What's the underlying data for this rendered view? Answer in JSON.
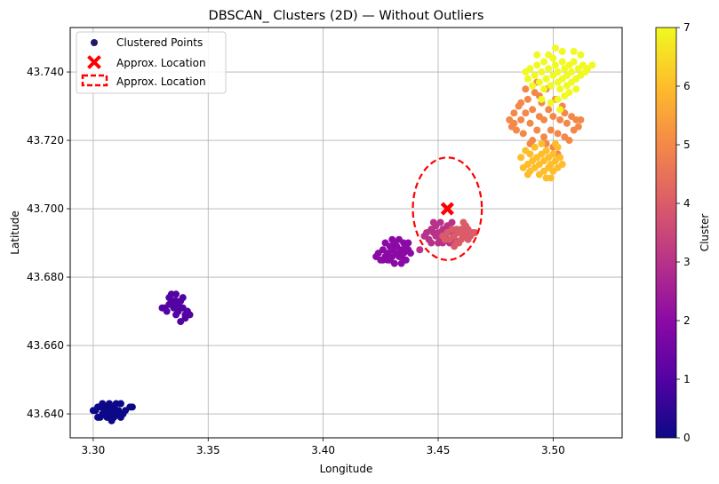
{
  "chart_data": {
    "type": "scatter",
    "title": "DBSCAN_ Clusters (2D) — Without Outliers",
    "xlabel": "Longitude",
    "ylabel": "Latitude",
    "xlim": [
      3.29,
      3.53
    ],
    "ylim": [
      43.633,
      43.753
    ],
    "x_ticks": [
      3.3,
      3.35,
      3.4,
      3.45,
      3.5
    ],
    "x_tick_labels": [
      "3.30",
      "3.35",
      "3.40",
      "3.45",
      "3.50"
    ],
    "y_ticks": [
      43.64,
      43.66,
      43.68,
      43.7,
      43.72,
      43.74
    ],
    "y_tick_labels": [
      "43.640",
      "43.660",
      "43.680",
      "43.700",
      "43.720",
      "43.740"
    ],
    "grid": true,
    "legend_position": "top-left",
    "legend": [
      {
        "label": "Clustered Points",
        "marker": "dot",
        "color": "#1a1a66"
      },
      {
        "label": "Approx. Location",
        "marker": "x",
        "color": "#ff0000"
      },
      {
        "label": "Approx. Location",
        "marker": "dashed-box",
        "color": "#ff0000"
      }
    ],
    "colorbar": {
      "label": "Cluster",
      "min": 0,
      "max": 7,
      "ticks": [
        "0",
        "1",
        "2",
        "3",
        "4",
        "5",
        "6",
        "7"
      ],
      "colormap": "plasma"
    },
    "clusters": [
      {
        "cluster": 0,
        "color": "#0d0887",
        "points": [
          [
            3.301,
            43.641
          ],
          [
            3.302,
            43.639
          ],
          [
            3.303,
            43.642
          ],
          [
            3.304,
            43.64
          ],
          [
            3.305,
            43.641
          ],
          [
            3.306,
            43.639
          ],
          [
            3.306,
            43.642
          ],
          [
            3.307,
            43.64
          ],
          [
            3.308,
            43.641
          ],
          [
            3.309,
            43.642
          ],
          [
            3.309,
            43.639
          ],
          [
            3.31,
            43.64
          ],
          [
            3.311,
            43.641
          ],
          [
            3.312,
            43.643
          ],
          [
            3.312,
            43.639
          ],
          [
            3.313,
            43.64
          ],
          [
            3.304,
            43.643
          ],
          [
            3.307,
            43.643
          ],
          [
            3.31,
            43.643
          ],
          [
            3.316,
            43.642
          ],
          [
            3.317,
            43.642
          ],
          [
            3.302,
            43.642
          ],
          [
            3.305,
            43.64
          ],
          [
            3.308,
            43.638
          ],
          [
            3.311,
            43.64
          ],
          [
            3.303,
            43.639
          ],
          [
            3.306,
            43.641
          ],
          [
            3.309,
            43.641
          ],
          [
            3.314,
            43.641
          ],
          [
            3.3,
            43.641
          ]
        ]
      },
      {
        "cluster": 1,
        "color": "#5302a3",
        "points": [
          [
            3.33,
            43.671
          ],
          [
            3.332,
            43.67
          ],
          [
            3.333,
            43.674
          ],
          [
            3.334,
            43.672
          ],
          [
            3.334,
            43.675
          ],
          [
            3.335,
            43.671
          ],
          [
            3.336,
            43.669
          ],
          [
            3.336,
            43.673
          ],
          [
            3.337,
            43.67
          ],
          [
            3.337,
            43.672
          ],
          [
            3.338,
            43.667
          ],
          [
            3.338,
            43.673
          ],
          [
            3.339,
            43.671
          ],
          [
            3.34,
            43.669
          ],
          [
            3.34,
            43.668
          ],
          [
            3.341,
            43.67
          ],
          [
            3.342,
            43.669
          ],
          [
            3.335,
            43.673
          ],
          [
            3.333,
            43.672
          ],
          [
            3.339,
            43.674
          ],
          [
            3.336,
            43.675
          ],
          [
            3.331,
            43.671
          ]
        ]
      },
      {
        "cluster": 2,
        "color": "#8b0aa5",
        "points": [
          [
            3.423,
            43.686
          ],
          [
            3.424,
            43.687
          ],
          [
            3.425,
            43.685
          ],
          [
            3.426,
            43.688
          ],
          [
            3.427,
            43.69
          ],
          [
            3.427,
            43.686
          ],
          [
            3.428,
            43.687
          ],
          [
            3.429,
            43.689
          ],
          [
            3.429,
            43.685
          ],
          [
            3.43,
            43.688
          ],
          [
            3.43,
            43.686
          ],
          [
            3.431,
            43.69
          ],
          [
            3.431,
            43.684
          ],
          [
            3.432,
            43.687
          ],
          [
            3.432,
            43.689
          ],
          [
            3.433,
            43.686
          ],
          [
            3.433,
            43.691
          ],
          [
            3.434,
            43.688
          ],
          [
            3.434,
            43.684
          ],
          [
            3.435,
            43.69
          ],
          [
            3.435,
            43.687
          ],
          [
            3.436,
            43.689
          ],
          [
            3.436,
            43.685
          ],
          [
            3.437,
            43.688
          ],
          [
            3.437,
            43.69
          ],
          [
            3.438,
            43.687
          ],
          [
            3.428,
            43.685
          ],
          [
            3.43,
            43.691
          ],
          [
            3.426,
            43.685
          ],
          [
            3.434,
            43.686
          ]
        ]
      },
      {
        "cluster": 3,
        "color": "#b83289",
        "points": [
          [
            3.442,
            43.688
          ],
          [
            3.444,
            43.692
          ],
          [
            3.446,
            43.691
          ],
          [
            3.447,
            43.694
          ],
          [
            3.448,
            43.693
          ],
          [
            3.448,
            43.696
          ],
          [
            3.449,
            43.692
          ],
          [
            3.449,
            43.695
          ],
          [
            3.45,
            43.69
          ],
          [
            3.45,
            43.693
          ],
          [
            3.451,
            43.696
          ],
          [
            3.451,
            43.691
          ],
          [
            3.452,
            43.694
          ],
          [
            3.453,
            43.692
          ],
          [
            3.454,
            43.695
          ],
          [
            3.455,
            43.69
          ],
          [
            3.456,
            43.693
          ],
          [
            3.456,
            43.696
          ],
          [
            3.457,
            43.691
          ],
          [
            3.452,
            43.69
          ],
          [
            3.447,
            43.69
          ],
          [
            3.445,
            43.693
          ]
        ]
      },
      {
        "cluster": 4,
        "color": "#db5c68",
        "points": [
          [
            3.452,
            43.692
          ],
          [
            3.454,
            43.693
          ],
          [
            3.455,
            43.691
          ],
          [
            3.456,
            43.694
          ],
          [
            3.457,
            43.692
          ],
          [
            3.458,
            43.694
          ],
          [
            3.458,
            43.69
          ],
          [
            3.459,
            43.693
          ],
          [
            3.46,
            43.691
          ],
          [
            3.46,
            43.694
          ],
          [
            3.461,
            43.692
          ],
          [
            3.462,
            43.693
          ],
          [
            3.462,
            43.695
          ],
          [
            3.463,
            43.691
          ],
          [
            3.464,
            43.692
          ],
          [
            3.465,
            43.693
          ],
          [
            3.466,
            43.693
          ],
          [
            3.457,
            43.689
          ],
          [
            3.459,
            43.69
          ],
          [
            3.461,
            43.696
          ],
          [
            3.463,
            43.694
          ],
          [
            3.453,
            43.691
          ]
        ]
      },
      {
        "cluster": 5,
        "color": "#f48849",
        "points": [
          [
            3.481,
            43.726
          ],
          [
            3.482,
            43.724
          ],
          [
            3.483,
            43.728
          ],
          [
            3.484,
            43.723
          ],
          [
            3.485,
            43.73
          ],
          [
            3.486,
            43.726
          ],
          [
            3.487,
            43.722
          ],
          [
            3.488,
            43.728
          ],
          [
            3.489,
            43.732
          ],
          [
            3.49,
            43.725
          ],
          [
            3.491,
            43.72
          ],
          [
            3.491,
            43.729
          ],
          [
            3.492,
            43.734
          ],
          [
            3.493,
            43.723
          ],
          [
            3.494,
            43.727
          ],
          [
            3.495,
            43.731
          ],
          [
            3.496,
            43.721
          ],
          [
            3.496,
            43.726
          ],
          [
            3.497,
            43.735
          ],
          [
            3.498,
            43.729
          ],
          [
            3.499,
            43.723
          ],
          [
            3.5,
            43.718
          ],
          [
            3.5,
            43.727
          ],
          [
            3.501,
            43.732
          ],
          [
            3.502,
            43.722
          ],
          [
            3.503,
            43.726
          ],
          [
            3.504,
            43.73
          ],
          [
            3.505,
            43.721
          ],
          [
            3.506,
            43.725
          ],
          [
            3.507,
            43.72
          ],
          [
            3.508,
            43.727
          ],
          [
            3.509,
            43.723
          ],
          [
            3.51,
            43.726
          ],
          [
            3.511,
            43.724
          ],
          [
            3.512,
            43.726
          ],
          [
            3.488,
            43.735
          ],
          [
            3.493,
            43.737
          ],
          [
            3.497,
            43.719
          ],
          [
            3.502,
            43.716
          ],
          [
            3.486,
            43.731
          ],
          [
            3.49,
            43.719
          ],
          [
            3.494,
            43.733
          ],
          [
            3.499,
            43.736
          ],
          [
            3.505,
            43.728
          ],
          [
            3.483,
            43.725
          ]
        ]
      },
      {
        "cluster": 6,
        "color": "#febd2a",
        "points": [
          [
            3.486,
            43.715
          ],
          [
            3.487,
            43.712
          ],
          [
            3.488,
            43.717
          ],
          [
            3.489,
            43.713
          ],
          [
            3.49,
            43.711
          ],
          [
            3.49,
            43.716
          ],
          [
            3.491,
            43.714
          ],
          [
            3.492,
            43.712
          ],
          [
            3.492,
            43.718
          ],
          [
            3.493,
            43.715
          ],
          [
            3.494,
            43.71
          ],
          [
            3.494,
            43.713
          ],
          [
            3.495,
            43.716
          ],
          [
            3.496,
            43.711
          ],
          [
            3.496,
            43.714
          ],
          [
            3.497,
            43.709
          ],
          [
            3.497,
            43.717
          ],
          [
            3.498,
            43.712
          ],
          [
            3.498,
            43.715
          ],
          [
            3.499,
            43.713
          ],
          [
            3.5,
            43.711
          ],
          [
            3.5,
            43.716
          ],
          [
            3.501,
            43.714
          ],
          [
            3.502,
            43.712
          ],
          [
            3.502,
            43.718
          ],
          [
            3.503,
            43.715
          ],
          [
            3.504,
            43.713
          ],
          [
            3.489,
            43.71
          ],
          [
            3.495,
            43.719
          ],
          [
            3.499,
            43.709
          ],
          [
            3.501,
            43.719
          ]
        ]
      },
      {
        "cluster": 7,
        "color": "#f0f921",
        "points": [
          [
            3.488,
            43.74
          ],
          [
            3.489,
            43.738
          ],
          [
            3.49,
            43.741
          ],
          [
            3.491,
            43.736
          ],
          [
            3.492,
            43.739
          ],
          [
            3.493,
            43.742
          ],
          [
            3.494,
            43.737
          ],
          [
            3.495,
            43.74
          ],
          [
            3.496,
            43.743
          ],
          [
            3.496,
            43.735
          ],
          [
            3.497,
            43.738
          ],
          [
            3.498,
            43.741
          ],
          [
            3.499,
            43.736
          ],
          [
            3.5,
            43.739
          ],
          [
            3.5,
            43.744
          ],
          [
            3.501,
            43.742
          ],
          [
            3.502,
            43.737
          ],
          [
            3.502,
            43.74
          ],
          [
            3.503,
            43.735
          ],
          [
            3.504,
            43.743
          ],
          [
            3.504,
            43.738
          ],
          [
            3.505,
            43.741
          ],
          [
            3.506,
            43.736
          ],
          [
            3.506,
            43.739
          ],
          [
            3.507,
            43.742
          ],
          [
            3.508,
            43.737
          ],
          [
            3.508,
            43.74
          ],
          [
            3.509,
            43.743
          ],
          [
            3.51,
            43.738
          ],
          [
            3.511,
            43.741
          ],
          [
            3.512,
            43.739
          ],
          [
            3.513,
            43.742
          ],
          [
            3.514,
            43.74
          ],
          [
            3.515,
            43.741
          ],
          [
            3.517,
            43.742
          ],
          [
            3.501,
            43.747
          ],
          [
            3.504,
            43.746
          ],
          [
            3.509,
            43.746
          ],
          [
            3.512,
            43.745
          ],
          [
            3.498,
            43.745
          ],
          [
            3.502,
            43.732
          ],
          [
            3.505,
            43.733
          ],
          [
            3.503,
            43.729
          ],
          [
            3.499,
            43.731
          ],
          [
            3.507,
            43.734
          ],
          [
            3.493,
            43.745
          ],
          [
            3.51,
            43.735
          ],
          [
            3.495,
            43.732
          ]
        ]
      }
    ],
    "approx_location": {
      "x": 3.454,
      "y": 43.7,
      "radius_x": 0.015,
      "radius_y": 0.015
    }
  }
}
